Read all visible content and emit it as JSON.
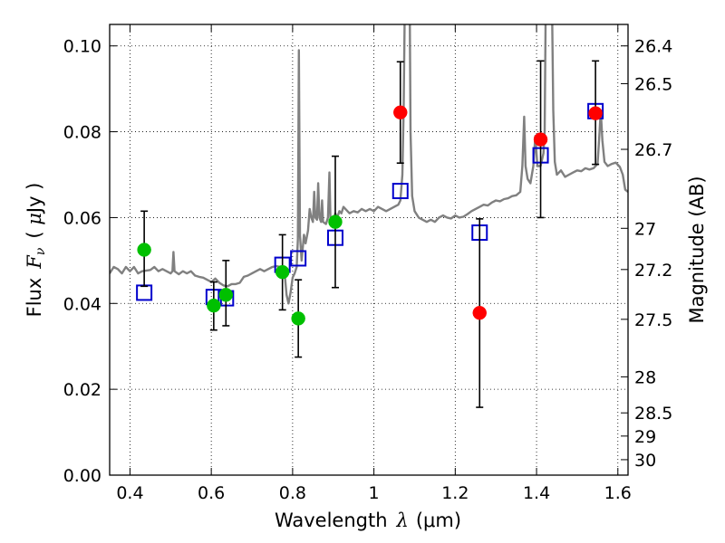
{
  "chart_data": {
    "type": "scatter",
    "xlabel_prefix": "Wavelength",
    "xlabel_symbol": "λ",
    "xlabel_unit": "(μm)",
    "ylabel_prefix": "Flux",
    "ylabel_symbol": "F",
    "ylabel_subscript": "ν",
    "ylabel_unit_open": "( ",
    "ylabel_unit_mu": "μ",
    "ylabel_unit_rest": "Jy )",
    "y2label": "Magnitude (AB)",
    "xlim": [
      0.35,
      1.625
    ],
    "ylim": [
      0.0,
      0.105
    ],
    "grid": true,
    "x_ticks": [
      0.4,
      0.6,
      0.8,
      1.0,
      1.2,
      1.4,
      1.6
    ],
    "x_tick_labels": [
      "0.4",
      "0.6",
      "0.8",
      "1",
      "1.2",
      "1.4",
      "1.6"
    ],
    "y_ticks": [
      0.0,
      0.02,
      0.04,
      0.06,
      0.08,
      0.1
    ],
    "y_tick_labels": [
      "0.00",
      "0.02",
      "0.04",
      "0.06",
      "0.08",
      "0.10"
    ],
    "y2_ticks": [
      {
        "label": "26.4",
        "flux": 0.1
      },
      {
        "label": "26.5",
        "flux": 0.0912
      },
      {
        "label": "26.7",
        "flux": 0.0759
      },
      {
        "label": "27",
        "flux": 0.0575
      },
      {
        "label": "27.2",
        "flux": 0.0479
      },
      {
        "label": "27.5",
        "flux": 0.0363
      },
      {
        "label": "28",
        "flux": 0.0229
      },
      {
        "label": "28.5",
        "flux": 0.0145
      },
      {
        "label": "29",
        "flux": 0.0091
      },
      {
        "label": "30",
        "flux": 0.0036
      }
    ],
    "colors": {
      "spectrum": "#808080",
      "green": "#00c000",
      "red": "#ff0000",
      "model": "#0000cc",
      "errorbar": "#000000",
      "grid": "#000000"
    },
    "series": [
      {
        "marker": "circle-green",
        "points": [
          {
            "x": 0.435,
            "y": 0.0525,
            "ylo": 0.044,
            "yhi": 0.0615
          },
          {
            "x": 0.606,
            "y": 0.0395,
            "ylo": 0.0338,
            "yhi": 0.045
          },
          {
            "x": 0.636,
            "y": 0.042,
            "ylo": 0.0348,
            "yhi": 0.05
          },
          {
            "x": 0.775,
            "y": 0.0473,
            "ylo": 0.0385,
            "yhi": 0.056
          },
          {
            "x": 0.814,
            "y": 0.0365,
            "ylo": 0.0275,
            "yhi": 0.0455
          },
          {
            "x": 0.905,
            "y": 0.059,
            "ylo": 0.0437,
            "yhi": 0.0743
          }
        ]
      },
      {
        "marker": "circle-red",
        "points": [
          {
            "x": 1.065,
            "y": 0.0845,
            "ylo": 0.0727,
            "yhi": 0.0963
          },
          {
            "x": 1.26,
            "y": 0.0378,
            "ylo": 0.0158,
            "yhi": 0.0597
          },
          {
            "x": 1.41,
            "y": 0.0782,
            "ylo": 0.06,
            "yhi": 0.0965
          },
          {
            "x": 1.545,
            "y": 0.0843,
            "ylo": 0.0724,
            "yhi": 0.0965
          }
        ]
      },
      {
        "marker": "square-open-blue",
        "points": [
          {
            "x": 0.435,
            "y": 0.0425
          },
          {
            "x": 0.606,
            "y": 0.0415
          },
          {
            "x": 0.636,
            "y": 0.0412
          },
          {
            "x": 0.775,
            "y": 0.049
          },
          {
            "x": 0.814,
            "y": 0.0505
          },
          {
            "x": 0.905,
            "y": 0.0553
          },
          {
            "x": 1.065,
            "y": 0.0662
          },
          {
            "x": 1.26,
            "y": 0.0565
          },
          {
            "x": 1.41,
            "y": 0.0745
          },
          {
            "x": 1.545,
            "y": 0.0848
          }
        ]
      }
    ],
    "spectrum": [
      [
        0.35,
        0.047
      ],
      [
        0.36,
        0.0485
      ],
      [
        0.37,
        0.048
      ],
      [
        0.38,
        0.047
      ],
      [
        0.39,
        0.0485
      ],
      [
        0.4,
        0.0475
      ],
      [
        0.41,
        0.0485
      ],
      [
        0.42,
        0.047
      ],
      [
        0.43,
        0.0475
      ],
      [
        0.45,
        0.0478
      ],
      [
        0.46,
        0.0485
      ],
      [
        0.47,
        0.0475
      ],
      [
        0.48,
        0.048
      ],
      [
        0.49,
        0.0475
      ],
      [
        0.5,
        0.047
      ],
      [
        0.5045,
        0.0475
      ],
      [
        0.507,
        0.052
      ],
      [
        0.5095,
        0.0475
      ],
      [
        0.52,
        0.0468
      ],
      [
        0.53,
        0.0475
      ],
      [
        0.54,
        0.047
      ],
      [
        0.55,
        0.0475
      ],
      [
        0.56,
        0.0465
      ],
      [
        0.57,
        0.0462
      ],
      [
        0.58,
        0.046
      ],
      [
        0.59,
        0.0455
      ],
      [
        0.6,
        0.045
      ],
      [
        0.61,
        0.0458
      ],
      [
        0.62,
        0.0448
      ],
      [
        0.63,
        0.0442
      ],
      [
        0.64,
        0.044
      ],
      [
        0.65,
        0.0445
      ],
      [
        0.66,
        0.0445
      ],
      [
        0.67,
        0.0448
      ],
      [
        0.68,
        0.0462
      ],
      [
        0.69,
        0.0465
      ],
      [
        0.7,
        0.047
      ],
      [
        0.71,
        0.0475
      ],
      [
        0.72,
        0.048
      ],
      [
        0.73,
        0.0475
      ],
      [
        0.74,
        0.048
      ],
      [
        0.75,
        0.0485
      ],
      [
        0.76,
        0.0487
      ],
      [
        0.77,
        0.0485
      ],
      [
        0.78,
        0.0475
      ],
      [
        0.785,
        0.042
      ],
      [
        0.79,
        0.04
      ],
      [
        0.795,
        0.0425
      ],
      [
        0.8,
        0.046
      ],
      [
        0.805,
        0.047
      ],
      [
        0.81,
        0.0485
      ],
      [
        0.813,
        0.055
      ],
      [
        0.8155,
        0.099
      ],
      [
        0.818,
        0.056
      ],
      [
        0.822,
        0.05
      ],
      [
        0.828,
        0.056
      ],
      [
        0.832,
        0.054
      ],
      [
        0.838,
        0.057
      ],
      [
        0.842,
        0.062
      ],
      [
        0.846,
        0.06
      ],
      [
        0.85,
        0.059
      ],
      [
        0.853,
        0.066
      ],
      [
        0.856,
        0.06
      ],
      [
        0.86,
        0.0595
      ],
      [
        0.863,
        0.068
      ],
      [
        0.866,
        0.06
      ],
      [
        0.87,
        0.059
      ],
      [
        0.8725,
        0.064
      ],
      [
        0.875,
        0.059
      ],
      [
        0.882,
        0.0585
      ],
      [
        0.887,
        0.06
      ],
      [
        0.8905,
        0.0705
      ],
      [
        0.893,
        0.06
      ],
      [
        0.9,
        0.059
      ],
      [
        0.905,
        0.061
      ],
      [
        0.91,
        0.06
      ],
      [
        0.915,
        0.0615
      ],
      [
        0.92,
        0.061
      ],
      [
        0.925,
        0.0625
      ],
      [
        0.93,
        0.062
      ],
      [
        0.94,
        0.061
      ],
      [
        0.95,
        0.0615
      ],
      [
        0.96,
        0.0612
      ],
      [
        0.97,
        0.062
      ],
      [
        0.98,
        0.0615
      ],
      [
        0.99,
        0.062
      ],
      [
        1.0,
        0.0615
      ],
      [
        1.01,
        0.0625
      ],
      [
        1.02,
        0.062
      ],
      [
        1.03,
        0.0615
      ],
      [
        1.04,
        0.062
      ],
      [
        1.05,
        0.0625
      ],
      [
        1.06,
        0.063
      ],
      [
        1.065,
        0.064
      ],
      [
        1.07,
        0.07
      ],
      [
        1.073,
        0.085
      ],
      [
        1.076,
        0.11
      ],
      [
        1.088,
        0.11
      ],
      [
        1.09,
        0.08
      ],
      [
        1.094,
        0.065
      ],
      [
        1.1,
        0.0615
      ],
      [
        1.11,
        0.06
      ],
      [
        1.12,
        0.0595
      ],
      [
        1.13,
        0.059
      ],
      [
        1.14,
        0.0595
      ],
      [
        1.15,
        0.059
      ],
      [
        1.16,
        0.06
      ],
      [
        1.17,
        0.0605
      ],
      [
        1.18,
        0.06
      ],
      [
        1.19,
        0.0598
      ],
      [
        1.2,
        0.0605
      ],
      [
        1.21,
        0.06
      ],
      [
        1.22,
        0.0602
      ],
      [
        1.23,
        0.0608
      ],
      [
        1.24,
        0.0615
      ],
      [
        1.25,
        0.062
      ],
      [
        1.26,
        0.0625
      ],
      [
        1.27,
        0.063
      ],
      [
        1.28,
        0.0628
      ],
      [
        1.29,
        0.0635
      ],
      [
        1.3,
        0.064
      ],
      [
        1.31,
        0.0638
      ],
      [
        1.32,
        0.0643
      ],
      [
        1.33,
        0.0645
      ],
      [
        1.34,
        0.065
      ],
      [
        1.35,
        0.0652
      ],
      [
        1.36,
        0.066
      ],
      [
        1.365,
        0.072
      ],
      [
        1.3695,
        0.0835
      ],
      [
        1.373,
        0.072
      ],
      [
        1.378,
        0.069
      ],
      [
        1.385,
        0.068
      ],
      [
        1.392,
        0.072
      ],
      [
        1.397,
        0.079
      ],
      [
        1.402,
        0.072
      ],
      [
        1.41,
        0.072
      ],
      [
        1.417,
        0.075
      ],
      [
        1.42,
        0.08
      ],
      [
        1.4225,
        0.11
      ],
      [
        1.438,
        0.11
      ],
      [
        1.441,
        0.085
      ],
      [
        1.445,
        0.073
      ],
      [
        1.45,
        0.07
      ],
      [
        1.46,
        0.071
      ],
      [
        1.47,
        0.0695
      ],
      [
        1.48,
        0.07
      ],
      [
        1.49,
        0.0705
      ],
      [
        1.5,
        0.071
      ],
      [
        1.51,
        0.0708
      ],
      [
        1.52,
        0.0715
      ],
      [
        1.53,
        0.0712
      ],
      [
        1.54,
        0.0715
      ],
      [
        1.55,
        0.0725
      ],
      [
        1.555,
        0.08
      ],
      [
        1.558,
        0.085
      ],
      [
        1.562,
        0.078
      ],
      [
        1.567,
        0.073
      ],
      [
        1.575,
        0.072
      ],
      [
        1.585,
        0.0725
      ],
      [
        1.595,
        0.0728
      ],
      [
        1.605,
        0.0718
      ],
      [
        1.612,
        0.07
      ],
      [
        1.618,
        0.0665
      ],
      [
        1.625,
        0.066
      ]
    ]
  }
}
